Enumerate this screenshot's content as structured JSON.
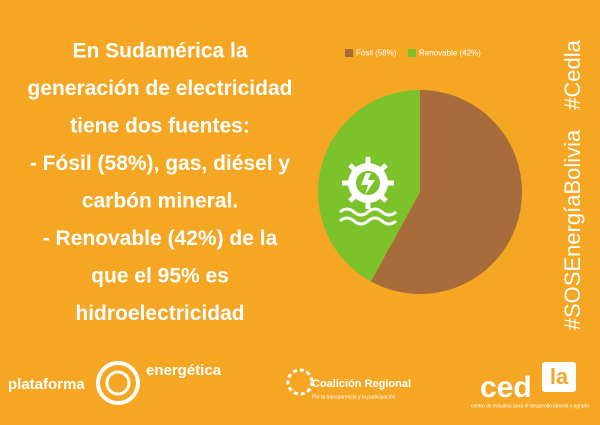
{
  "chart_data": {
    "type": "pie",
    "categories": [
      "Fósil (58%)",
      "Renovable (42%)"
    ],
    "values": [
      58,
      42
    ],
    "colors": [
      "#a86b3c",
      "#7cc22b"
    ],
    "legend": "top"
  },
  "message": [
    "En Sudamérica la",
    "generación de electricidad",
    "tiene dos fuentes:",
    "- Fósil (58%), gas, diésel y",
    "carbón mineral.",
    "- Renovable (42%) de la",
    "que el 95% es",
    "hidroelectricidad"
  ],
  "hashtags": [
    "#SOSEnergíaBolivia",
    "#Cedla"
  ],
  "logos": {
    "plataforma": "plataforma",
    "energetica": "energética",
    "coalicion": "Coalición Regional",
    "coalicion_sub": "Por la transparencia y la participación",
    "cedla": "ced",
    "cedla_la": "la",
    "cedla_sub": "centro de estudios para el desarrollo laboral y agrario"
  }
}
